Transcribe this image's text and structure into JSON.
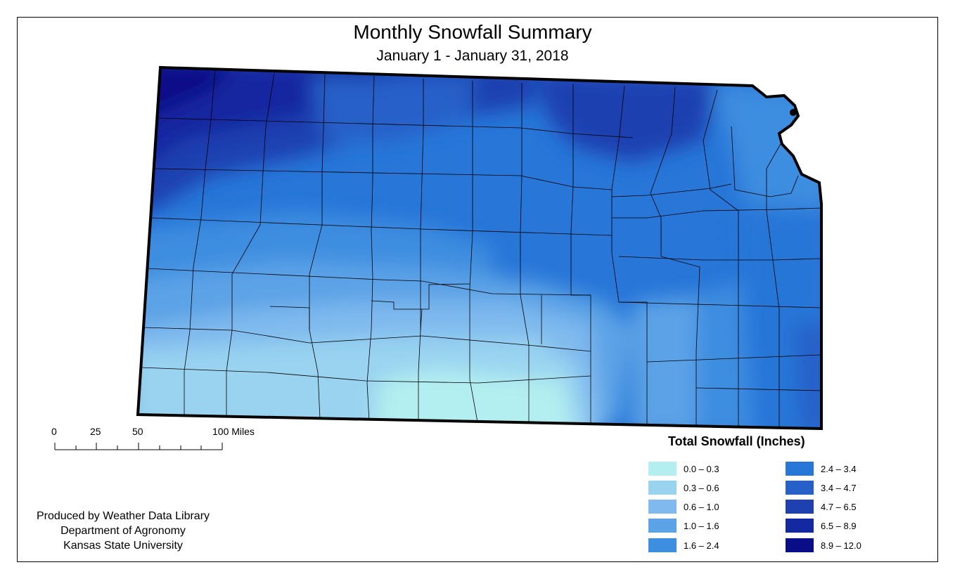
{
  "title": "Monthly Snowfall Summary",
  "subtitle": "January 1 - January 31, 2018",
  "scale": {
    "ticks": [
      "0",
      "25",
      "50",
      "100 Miles"
    ]
  },
  "legend": {
    "title": "Total Snowfall (Inches)",
    "items": [
      {
        "label": "0.0 – 0.3",
        "color": "#b3eef0"
      },
      {
        "label": "0.3 – 0.6",
        "color": "#99d3f0"
      },
      {
        "label": "0.6 – 1.0",
        "color": "#7fb9ee"
      },
      {
        "label": "1.0 – 1.6",
        "color": "#5ba2e6"
      },
      {
        "label": "1.6 – 2.4",
        "color": "#3d8de0"
      },
      {
        "label": "2.4 – 3.4",
        "color": "#2776d8"
      },
      {
        "label": "3.4 – 4.7",
        "color": "#2760c8"
      },
      {
        "label": "4.7 – 6.5",
        "color": "#1e40b0"
      },
      {
        "label": "6.5 – 8.9",
        "color": "#1428a0"
      },
      {
        "label": "8.9 – 12.0",
        "color": "#0a0d88"
      }
    ]
  },
  "credits": {
    "line1": "Produced by Weather Data Library",
    "line2": "Department of Agronomy",
    "line3": "Kansas State University"
  }
}
